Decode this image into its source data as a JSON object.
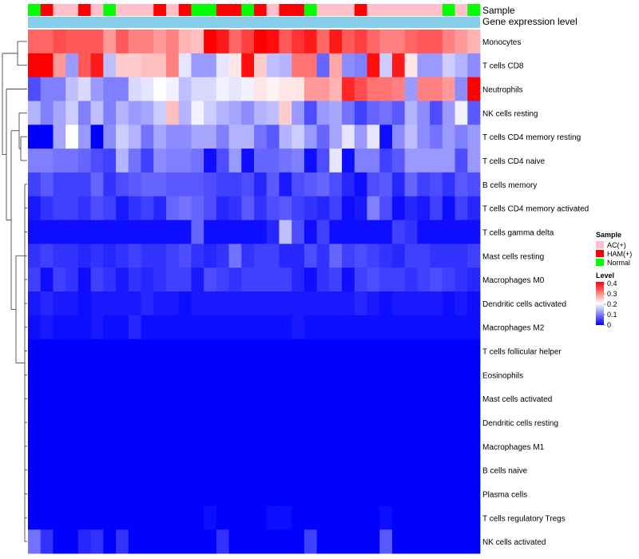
{
  "chart_data": {
    "type": "heatmap",
    "title": "",
    "annotation_tracks": [
      {
        "name": "Sample",
        "label": "Sample"
      },
      {
        "name": "Gene expression level",
        "label": "Gene expression level",
        "color": "#87ceeb"
      }
    ],
    "sample_groups": [
      "AC(+)",
      "HAM(+)",
      "Normal"
    ],
    "sample_group_colors": {
      "AC(+)": "#ffc0cb",
      "HAM(+)": "#ff0000",
      "Normal": "#00ff00"
    },
    "columns": [
      "Normal",
      "HAM(+)",
      "AC(+)",
      "AC(+)",
      "HAM(+)",
      "AC(+)",
      "Normal",
      "AC(+)",
      "AC(+)",
      "AC(+)",
      "HAM(+)",
      "AC(+)",
      "HAM(+)",
      "Normal",
      "Normal",
      "HAM(+)",
      "HAM(+)",
      "Normal",
      "HAM(+)",
      "AC(+)",
      "HAM(+)",
      "HAM(+)",
      "Normal",
      "AC(+)",
      "AC(+)",
      "AC(+)",
      "HAM(+)",
      "AC(+)",
      "AC(+)",
      "AC(+)",
      "AC(+)",
      "AC(+)",
      "AC(+)",
      "Normal",
      "AC(+)",
      "Normal"
    ],
    "rows": [
      "Monocytes",
      "T cells CD8",
      "Neutrophils",
      "NK cells resting",
      "T cells CD4 memory resting",
      "T cells CD4 naive",
      "B cells memory",
      "T cells CD4 memory activated",
      "T cells gamma delta",
      "Mast cells resting",
      "Macrophages M0",
      "Dendritic cells activated",
      "Macrophages M2",
      "T cells follicular helper",
      "Eosinophils",
      "Mast cells activated",
      "Dendritic cells resting",
      "Macrophages M1",
      "B cells naive",
      "Plasma cells",
      "T cells regulatory  Tregs",
      "NK cells activated"
    ],
    "values": [
      [
        0.32,
        0.32,
        0.34,
        0.33,
        0.33,
        0.33,
        0.28,
        0.33,
        0.3,
        0.3,
        0.28,
        0.3,
        0.26,
        0.25,
        0.4,
        0.38,
        0.32,
        0.35,
        0.4,
        0.39,
        0.33,
        0.36,
        0.38,
        0.32,
        0.38,
        0.33,
        0.35,
        0.32,
        0.3,
        0.3,
        0.32,
        0.33,
        0.33,
        0.3,
        0.28,
        0.26
      ],
      [
        0.4,
        0.4,
        0.28,
        0.12,
        0.33,
        0.38,
        0.15,
        0.24,
        0.24,
        0.25,
        0.25,
        0.3,
        0.18,
        0.12,
        0.12,
        0.18,
        0.22,
        0.39,
        0.24,
        0.15,
        0.14,
        0.31,
        0.31,
        0.08,
        0.27,
        0.11,
        0.1,
        0.39,
        0.16,
        0.38,
        0.22,
        0.12,
        0.12,
        0.16,
        0.14,
        0.11
      ],
      [
        0.06,
        0.1,
        0.1,
        0.15,
        0.17,
        0.12,
        0.1,
        0.1,
        0.17,
        0.18,
        0.2,
        0.19,
        0.15,
        0.17,
        0.17,
        0.19,
        0.18,
        0.19,
        0.22,
        0.21,
        0.22,
        0.22,
        0.28,
        0.28,
        0.26,
        0.37,
        0.34,
        0.31,
        0.31,
        0.3,
        0.12,
        0.3,
        0.3,
        0.28,
        0.11,
        0.4
      ],
      [
        0.14,
        0.1,
        0.13,
        0.16,
        0.1,
        0.15,
        0.1,
        0.14,
        0.12,
        0.13,
        0.16,
        0.25,
        0.14,
        0.19,
        0.16,
        0.14,
        0.13,
        0.11,
        0.14,
        0.15,
        0.24,
        0.12,
        0.06,
        0.12,
        0.13,
        0.09,
        0.05,
        0.08,
        0.09,
        0.07,
        0.14,
        0.11,
        0.06,
        0.12,
        0.19,
        0.07
      ],
      [
        0.0,
        0.0,
        0.13,
        0.2,
        0.12,
        0.0,
        0.11,
        0.16,
        0.14,
        0.09,
        0.13,
        0.11,
        0.11,
        0.13,
        0.13,
        0.1,
        0.14,
        0.14,
        0.09,
        0.07,
        0.14,
        0.16,
        0.12,
        0.08,
        0.13,
        0.18,
        0.12,
        0.18,
        0.01,
        0.11,
        0.15,
        0.11,
        0.09,
        0.12,
        0.1,
        0.12
      ],
      [
        0.1,
        0.1,
        0.09,
        0.09,
        0.08,
        0.06,
        0.05,
        0.14,
        0.09,
        0.05,
        0.11,
        0.1,
        0.1,
        0.09,
        0.01,
        0.06,
        0.12,
        0.01,
        0.08,
        0.08,
        0.09,
        0.1,
        0.01,
        0.06,
        0.18,
        0.01,
        0.1,
        0.1,
        0.05,
        0.07,
        0.12,
        0.12,
        0.12,
        0.12,
        0.06,
        0.12
      ],
      [
        0.05,
        0.07,
        0.05,
        0.05,
        0.05,
        0.08,
        0.04,
        0.06,
        0.07,
        0.08,
        0.08,
        0.07,
        0.07,
        0.07,
        0.06,
        0.05,
        0.05,
        0.06,
        0.03,
        0.07,
        0.02,
        0.06,
        0.07,
        0.08,
        0.06,
        0.03,
        0.01,
        0.06,
        0.07,
        0.03,
        0.08,
        0.05,
        0.06,
        0.04,
        0.07,
        0.06
      ],
      [
        0.02,
        0.04,
        0.05,
        0.05,
        0.04,
        0.06,
        0.05,
        0.02,
        0.04,
        0.05,
        0.03,
        0.08,
        0.09,
        0.08,
        0.06,
        0.03,
        0.04,
        0.07,
        0.04,
        0.06,
        0.07,
        0.05,
        0.04,
        0.03,
        0.05,
        0.01,
        0.02,
        0.1,
        0.06,
        0.01,
        0.03,
        0.02,
        0.05,
        0.01,
        0.05,
        0.03
      ],
      [
        0.01,
        0.01,
        0.01,
        0.01,
        0.01,
        0.01,
        0.01,
        0.01,
        0.01,
        0.01,
        0.01,
        0.01,
        0.01,
        0.08,
        0.01,
        0.01,
        0.01,
        0.01,
        0.01,
        0.03,
        0.15,
        0.06,
        0.01,
        0.05,
        0.01,
        0.01,
        0.01,
        0.01,
        0.01,
        0.05,
        0.04,
        0.01,
        0.01,
        0.01,
        0.01,
        0.01
      ],
      [
        0.04,
        0.05,
        0.04,
        0.04,
        0.03,
        0.04,
        0.03,
        0.04,
        0.05,
        0.04,
        0.04,
        0.05,
        0.06,
        0.04,
        0.03,
        0.04,
        0.09,
        0.04,
        0.05,
        0.05,
        0.03,
        0.03,
        0.06,
        0.04,
        0.08,
        0.05,
        0.06,
        0.05,
        0.04,
        0.03,
        0.05,
        0.05,
        0.04,
        0.04,
        0.04,
        0.05
      ],
      [
        0.05,
        0.01,
        0.05,
        0.04,
        0.01,
        0.05,
        0.04,
        0.02,
        0.04,
        0.03,
        0.04,
        0.05,
        0.05,
        0.02,
        0.06,
        0.05,
        0.04,
        0.05,
        0.05,
        0.05,
        0.05,
        0.03,
        0.01,
        0.04,
        0.05,
        0.01,
        0.05,
        0.06,
        0.05,
        0.05,
        0.04,
        0.05,
        0.06,
        0.05,
        0.04,
        0.03
      ],
      [
        0.02,
        0.03,
        0.02,
        0.02,
        0.01,
        0.02,
        0.02,
        0.02,
        0.02,
        0.03,
        0.02,
        0.02,
        0.01,
        0.02,
        0.02,
        0.02,
        0.02,
        0.02,
        0.02,
        0.02,
        0.02,
        0.02,
        0.02,
        0.02,
        0.02,
        0.02,
        0.03,
        0.02,
        0.01,
        0.02,
        0.02,
        0.02,
        0.02,
        0.01,
        0.02,
        0.01
      ],
      [
        0.01,
        0.02,
        0.01,
        0.01,
        0.01,
        0.02,
        0.01,
        0.01,
        0.03,
        0.01,
        0.01,
        0.01,
        0.01,
        0.01,
        0.01,
        0.01,
        0.01,
        0.01,
        0.01,
        0.01,
        0.01,
        0.02,
        0.01,
        0.01,
        0.01,
        0.01,
        0.01,
        0.01,
        0.01,
        0.01,
        0.01,
        0.01,
        0.01,
        0.01,
        0.01,
        0.01
      ],
      [
        0.0,
        0.0,
        0.0,
        0.0,
        0.0,
        0.0,
        0.0,
        0.0,
        0.0,
        0.0,
        0.0,
        0.0,
        0.0,
        0.0,
        0.0,
        0.0,
        0.0,
        0.0,
        0.0,
        0.0,
        0.0,
        0.0,
        0.0,
        0.0,
        0.0,
        0.0,
        0.0,
        0.0,
        0.0,
        0.0,
        0.0,
        0.0,
        0.0,
        0.0,
        0.0,
        0.0
      ],
      [
        0.0,
        0.0,
        0.0,
        0.0,
        0.0,
        0.0,
        0.0,
        0.0,
        0.0,
        0.0,
        0.0,
        0.0,
        0.0,
        0.0,
        0.0,
        0.0,
        0.0,
        0.0,
        0.0,
        0.0,
        0.0,
        0.0,
        0.0,
        0.0,
        0.0,
        0.0,
        0.0,
        0.0,
        0.0,
        0.0,
        0.0,
        0.0,
        0.0,
        0.0,
        0.0,
        0.0
      ],
      [
        0.0,
        0.0,
        0.0,
        0.0,
        0.0,
        0.0,
        0.0,
        0.0,
        0.0,
        0.0,
        0.0,
        0.0,
        0.0,
        0.0,
        0.0,
        0.0,
        0.0,
        0.0,
        0.0,
        0.0,
        0.0,
        0.0,
        0.0,
        0.0,
        0.0,
        0.0,
        0.0,
        0.0,
        0.0,
        0.0,
        0.0,
        0.0,
        0.0,
        0.0,
        0.0,
        0.0
      ],
      [
        0.0,
        0.0,
        0.0,
        0.0,
        0.0,
        0.0,
        0.0,
        0.0,
        0.0,
        0.0,
        0.0,
        0.0,
        0.0,
        0.0,
        0.0,
        0.0,
        0.0,
        0.0,
        0.0,
        0.0,
        0.0,
        0.0,
        0.0,
        0.0,
        0.0,
        0.0,
        0.0,
        0.0,
        0.0,
        0.0,
        0.0,
        0.0,
        0.0,
        0.0,
        0.0,
        0.0
      ],
      [
        0.0,
        0.0,
        0.0,
        0.0,
        0.0,
        0.0,
        0.0,
        0.0,
        0.0,
        0.0,
        0.0,
        0.0,
        0.0,
        0.0,
        0.0,
        0.0,
        0.0,
        0.0,
        0.0,
        0.0,
        0.0,
        0.0,
        0.0,
        0.0,
        0.0,
        0.0,
        0.0,
        0.0,
        0.0,
        0.0,
        0.0,
        0.0,
        0.0,
        0.0,
        0.0,
        0.0
      ],
      [
        0.0,
        0.0,
        0.0,
        0.0,
        0.0,
        0.0,
        0.0,
        0.0,
        0.0,
        0.0,
        0.0,
        0.0,
        0.0,
        0.0,
        0.0,
        0.0,
        0.0,
        0.0,
        0.0,
        0.0,
        0.0,
        0.0,
        0.0,
        0.0,
        0.0,
        0.0,
        0.0,
        0.0,
        0.0,
        0.0,
        0.0,
        0.0,
        0.0,
        0.0,
        0.0,
        0.0
      ],
      [
        0.0,
        0.0,
        0.0,
        0.0,
        0.0,
        0.0,
        0.0,
        0.0,
        0.0,
        0.0,
        0.0,
        0.0,
        0.0,
        0.0,
        0.0,
        0.0,
        0.0,
        0.0,
        0.0,
        0.0,
        0.0,
        0.0,
        0.0,
        0.0,
        0.0,
        0.0,
        0.0,
        0.0,
        0.0,
        0.0,
        0.0,
        0.0,
        0.0,
        0.0,
        0.0,
        0.0
      ],
      [
        0.0,
        0.0,
        0.0,
        0.0,
        0.0,
        0.0,
        0.0,
        0.0,
        0.0,
        0.0,
        0.0,
        0.0,
        0.0,
        0.0,
        0.01,
        0.0,
        0.0,
        0.0,
        0.0,
        0.01,
        0.01,
        0.0,
        0.0,
        0.0,
        0.0,
        0.0,
        0.0,
        0.0,
        0.01,
        0.0,
        0.0,
        0.0,
        0.0,
        0.0,
        0.0,
        0.0
      ],
      [
        0.09,
        0.04,
        0.0,
        0.0,
        0.03,
        0.04,
        0.0,
        0.04,
        0.0,
        0.0,
        0.0,
        0.0,
        0.0,
        0.0,
        0.0,
        0.04,
        0.0,
        0.0,
        0.0,
        0.0,
        0.0,
        0.0,
        0.05,
        0.0,
        0.0,
        0.0,
        0.0,
        0.0,
        0.07,
        0.0,
        0.0,
        0.0,
        0.0,
        0.0,
        0.0,
        0.0
      ]
    ],
    "color_scale": {
      "min": 0,
      "mid": 0.2,
      "max": 0.4,
      "low": "#0000ff",
      "midColor": "#ffffff",
      "high": "#ff0000"
    },
    "legend": {
      "sample_title": "Sample",
      "level_title": "Level",
      "level_ticks": [
        "0.4",
        "0.3",
        "0.2",
        "0.1",
        "0"
      ],
      "placement": "right"
    },
    "row_dendrogram": true
  }
}
